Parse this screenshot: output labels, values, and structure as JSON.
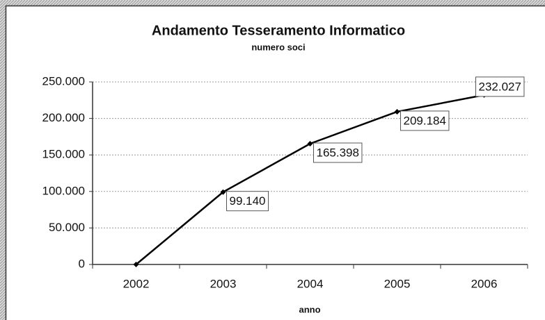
{
  "chart_data": {
    "type": "line",
    "title": "Andamento Tesseramento Informatico",
    "subtitle": "numero soci",
    "x_label": "anno",
    "categories": [
      "2002",
      "2003",
      "2004",
      "2005",
      "2006"
    ],
    "values": [
      0,
      99140,
      165398,
      209184,
      232027
    ],
    "value_labels": [
      null,
      "99.140",
      "165.398",
      "209.184",
      "232.027"
    ],
    "color": "#000000",
    "ylim": [
      0,
      250000
    ],
    "yticks": [
      0,
      {
        "value": 50000,
        "label": "50.000"
      },
      {
        "value": 100000,
        "label": "100.000"
      },
      {
        "value": 150000,
        "label": "150.000"
      },
      {
        "value": 200000,
        "label": "200.000"
      },
      {
        "value": 250000,
        "label": "250.000"
      }
    ],
    "grid": true
  }
}
